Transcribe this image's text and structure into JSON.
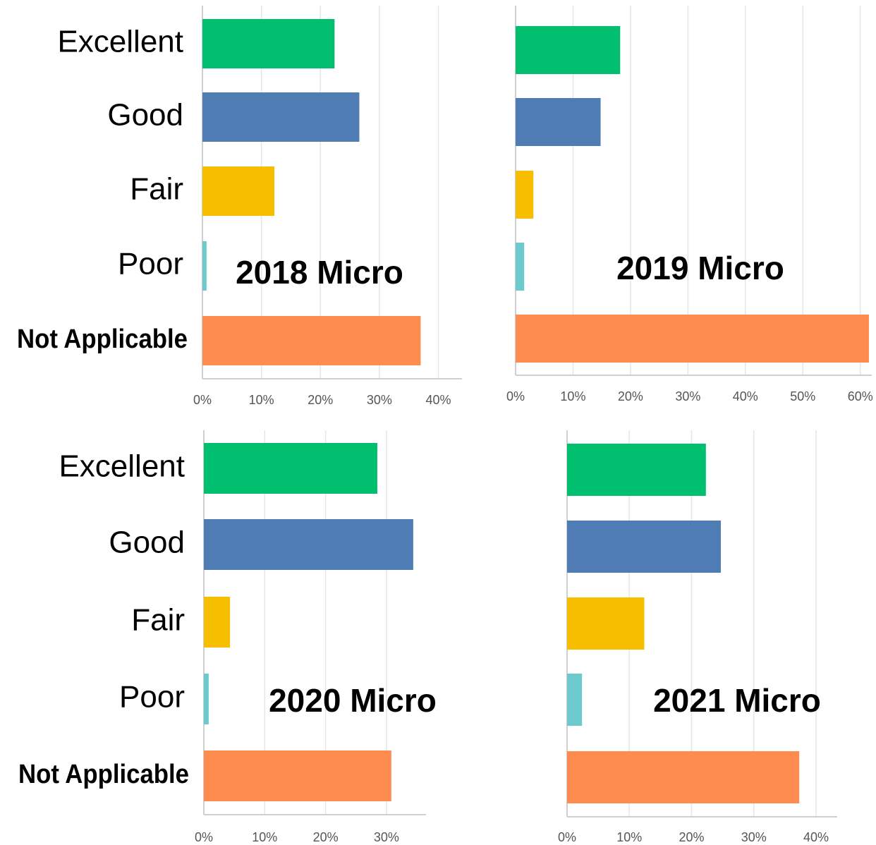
{
  "chart_data": [
    {
      "type": "bar",
      "orientation": "horizontal",
      "annotation": "2018 Micro",
      "categories": [
        "Excellent",
        "Good",
        "Fair",
        "Poor",
        "Not Applicable"
      ],
      "values": [
        22.4,
        26.6,
        12.2,
        0.7,
        37.0
      ],
      "colors": [
        "#00c070",
        "#4f7cb5",
        "#f7be00",
        "#6ccacc",
        "#ff8c4f"
      ],
      "xlim": [
        0,
        44
      ],
      "xticks": [
        {
          "value": 0,
          "label": "0%"
        },
        {
          "value": 10,
          "label": "10%"
        },
        {
          "value": 20,
          "label": "20%"
        },
        {
          "value": 30,
          "label": "30%"
        },
        {
          "value": 40,
          "label": "40%"
        }
      ],
      "grid": true
    },
    {
      "type": "bar",
      "orientation": "horizontal",
      "annotation": "2019 Micro",
      "categories": [
        null,
        null,
        null,
        null,
        null
      ],
      "values": [
        18.2,
        14.8,
        3.1,
        1.5,
        61.5
      ],
      "colors": [
        "#00c070",
        "#4f7cb5",
        "#f7be00",
        "#6ccacc",
        "#ff8c4f"
      ],
      "xlim": [
        0,
        62
      ],
      "xticks": [
        {
          "value": 0,
          "label": "0%"
        },
        {
          "value": 10,
          "label": "10%"
        },
        {
          "value": 20,
          "label": "20%"
        },
        {
          "value": 30,
          "label": "30%"
        },
        {
          "value": 40,
          "label": "40%"
        },
        {
          "value": 50,
          "label": "50%"
        },
        {
          "value": 60,
          "label": "60%"
        }
      ],
      "grid": true
    },
    {
      "type": "bar",
      "orientation": "horizontal",
      "annotation": "2020 Micro",
      "categories": [
        "Excellent",
        "Good",
        "Fair",
        "Poor",
        "Not Applicable"
      ],
      "values": [
        28.5,
        34.4,
        4.3,
        0.8,
        30.8
      ],
      "colors": [
        "#00c070",
        "#4f7cb5",
        "#f7be00",
        "#6ccacc",
        "#ff8c4f"
      ],
      "xlim": [
        0,
        36.5
      ],
      "xticks": [
        {
          "value": 0,
          "label": "0%"
        },
        {
          "value": 10,
          "label": "10%"
        },
        {
          "value": 20,
          "label": "20%"
        },
        {
          "value": 30,
          "label": "30%"
        }
      ],
      "grid": true
    },
    {
      "type": "bar",
      "orientation": "horizontal",
      "annotation": "2021 Micro",
      "categories": [
        null,
        null,
        null,
        null,
        null
      ],
      "values": [
        22.3,
        24.7,
        12.4,
        2.4,
        37.3
      ],
      "colors": [
        "#00c070",
        "#4f7cb5",
        "#f7be00",
        "#6ccacc",
        "#ff8c4f"
      ],
      "xlim": [
        0,
        43.4
      ],
      "xticks": [
        {
          "value": 0,
          "label": "0%"
        },
        {
          "value": 10,
          "label": "10%"
        },
        {
          "value": 20,
          "label": "20%"
        },
        {
          "value": 30,
          "label": "30%"
        },
        {
          "value": 40,
          "label": "40%"
        }
      ],
      "grid": true
    }
  ]
}
